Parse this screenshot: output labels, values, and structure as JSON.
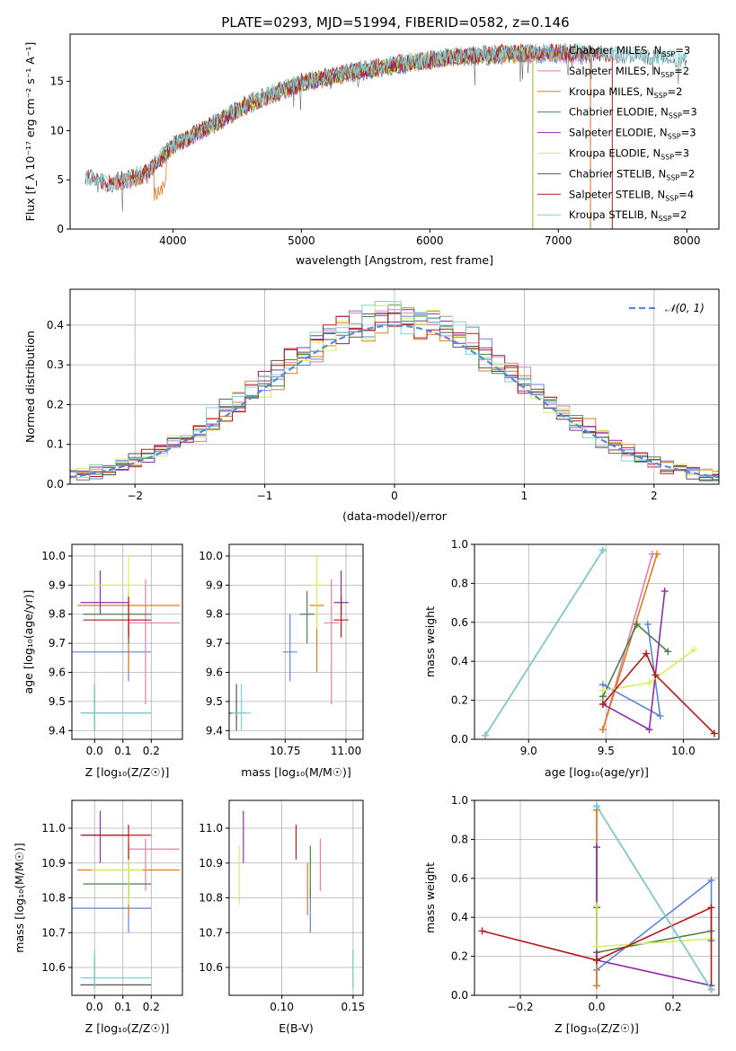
{
  "figure": {
    "title": "PLATE=0293, MJD=51994, FIBERID=0582, z=0.146"
  },
  "colors": {
    "Chabrier MILES": "#5b86d8",
    "Salpeter MILES": "#e37ea9",
    "Kroupa MILES": "#e07b1e",
    "Chabrier ELODIE": "#4f7f4c",
    "Salpeter ELODIE": "#8e2ea8",
    "Kroupa ELODIE": "#d8ee5e",
    "Chabrier STELIB": "#555555",
    "Salpeter STELIB": "#b81a1a",
    "Kroupa STELIB": "#7fd0d6",
    "gauss": "#5b86d8"
  },
  "chart_data": [
    {
      "id": "spectrum",
      "type": "line",
      "title": "PLATE=0293, MJD=51994, FIBERID=0582, z=0.146",
      "xlabel": "wavelength [Angstrom, rest frame]",
      "ylabel": "Flux [f_λ 10⁻¹⁷ erg cm⁻² s⁻¹ A⁻¹]",
      "xlim": [
        3200,
        8250
      ],
      "ylim": [
        0,
        19.8
      ],
      "xticks": [
        4000,
        5000,
        6000,
        7000,
        8000
      ],
      "yticks": [
        0,
        5,
        10,
        15
      ],
      "grid": false,
      "legend": "top-right",
      "series": [
        {
          "name": "Chabrier MILES, N_SSP=3",
          "key": "Chabrier MILES",
          "xrange": [
            3520,
            7250
          ]
        },
        {
          "name": "Salpeter MILES, N_SSP=2",
          "key": "Salpeter MILES",
          "xrange": [
            3520,
            7250
          ]
        },
        {
          "name": "Kroupa MILES, N_SSP=2",
          "key": "Kroupa MILES",
          "xrange": [
            3520,
            7250
          ]
        },
        {
          "name": "Chabrier ELODIE, N_SSP=3",
          "key": "Chabrier ELODIE",
          "xrange": [
            3900,
            6800
          ]
        },
        {
          "name": "Salpeter ELODIE, N_SSP=3",
          "key": "Salpeter ELODIE",
          "xrange": [
            3900,
            6800
          ]
        },
        {
          "name": "Kroupa ELODIE, N_SSP=3",
          "key": "Kroupa ELODIE",
          "xrange": [
            3900,
            6800
          ]
        },
        {
          "name": "Chabrier STELIB, N_SSP=2",
          "key": "Chabrier STELIB",
          "xrange": [
            3320,
            8000
          ]
        },
        {
          "name": "Salpeter STELIB, N_SSP=4",
          "key": "Salpeter STELIB",
          "xrange": [
            3320,
            7420
          ]
        },
        {
          "name": "Kroupa STELIB, N_SSP=2",
          "key": "Kroupa STELIB",
          "xrange": [
            3320,
            8000
          ]
        }
      ],
      "continuum": {
        "x": [
          3320,
          3500,
          3800,
          4000,
          4300,
          4600,
          5000,
          5400,
          5800,
          6200,
          6600,
          7000,
          7400,
          7800,
          8000
        ],
        "y": [
          5.2,
          4.5,
          5.6,
          8.5,
          10.5,
          12.8,
          14.8,
          16.0,
          16.8,
          17.5,
          17.8,
          17.9,
          17.6,
          17.3,
          17.0
        ]
      },
      "noise_amplitude": 1.1
    },
    {
      "id": "residuals",
      "type": "histogram",
      "xlabel": "(data-model)/error",
      "ylabel": "Normed distribution",
      "xlim": [
        -2.5,
        2.5
      ],
      "ylim": [
        0,
        0.49
      ],
      "xticks": [
        -2,
        -1,
        0,
        1,
        2
      ],
      "yticks": [
        0.0,
        0.1,
        0.2,
        0.3,
        0.4
      ],
      "grid": true,
      "legend": "top-right",
      "legend_label": "N(0,1)",
      "bin_width": 0.1,
      "series_keys": [
        "Chabrier MILES",
        "Salpeter MILES",
        "Kroupa MILES",
        "Chabrier ELODIE",
        "Salpeter ELODIE",
        "Kroupa ELODIE",
        "Chabrier STELIB",
        "Salpeter STELIB",
        "Kroupa STELIB"
      ]
    },
    {
      "id": "z-age",
      "type": "errorbar",
      "xlabel": "Z [log10(Z/Z⊙)]",
      "ylabel": "age [log10(age/yr)]",
      "xlim": [
        -0.08,
        0.31
      ],
      "ylim": [
        9.37,
        10.04
      ],
      "xticks": [
        0.0,
        0.1,
        0.2
      ],
      "yticks": [
        9.4,
        9.5,
        9.6,
        9.7,
        9.8,
        9.9,
        10.0
      ],
      "grid": true
    },
    {
      "id": "mass-age",
      "type": "errorbar",
      "xlabel": "mass [log10(M/M⊙)]",
      "ylabel": "",
      "xlim": [
        10.52,
        11.07
      ],
      "ylim": [
        9.37,
        10.04
      ],
      "xticks": [
        10.75,
        11.0
      ],
      "yticks": [
        9.4,
        9.5,
        9.6,
        9.7,
        9.8,
        9.9,
        10.0
      ],
      "grid": true
    },
    {
      "id": "age-weight",
      "type": "line",
      "xlabel": "age [log10(age/yr)]",
      "ylabel": "mass weight",
      "xlim": [
        8.65,
        10.23
      ],
      "ylim": [
        0,
        1.0
      ],
      "xticks": [
        9.0,
        9.5,
        10.0
      ],
      "yticks": [
        0.0,
        0.2,
        0.4,
        0.6,
        0.8,
        1.0
      ],
      "grid": true
    },
    {
      "id": "z-mass",
      "type": "errorbar",
      "xlabel": "Z [log10(Z/Z⊙)]",
      "ylabel": "mass [log10(M/M⊙)]",
      "xlim": [
        -0.08,
        0.31
      ],
      "ylim": [
        10.52,
        11.08
      ],
      "xticks": [
        0.0,
        0.1,
        0.2
      ],
      "yticks": [
        10.6,
        10.7,
        10.8,
        10.9,
        11.0
      ],
      "grid": true
    },
    {
      "id": "ebv-mass",
      "type": "errorbar",
      "xlabel": "E(B-V)",
      "ylabel": "",
      "xlim": [
        0.063,
        0.157
      ],
      "ylim": [
        10.52,
        11.08
      ],
      "xticks": [
        0.1,
        0.15
      ],
      "yticks": [
        10.6,
        10.7,
        10.8,
        10.9,
        11.0
      ],
      "grid": true
    },
    {
      "id": "z-weight",
      "type": "line",
      "xlabel": "Z [log10(Z/Z⊙)]",
      "ylabel": "mass weight",
      "xlim": [
        -0.32,
        0.32
      ],
      "ylim": [
        0,
        1.0
      ],
      "xticks": [
        -0.2,
        0.0,
        0.2
      ],
      "yticks": [
        0.0,
        0.2,
        0.4,
        0.6,
        0.8,
        1.0
      ],
      "grid": true
    }
  ],
  "fits": [
    {
      "key": "Chabrier MILES",
      "Z": 0.12,
      "Zerr": [
        -0.12,
        0.2
      ],
      "age": 9.67,
      "ageErr": [
        9.57,
        9.8
      ],
      "mass": 10.77,
      "massErr": [
        10.7,
        10.84
      ],
      "ebv": 0.12,
      "ebvErr": [
        10.7,
        10.83
      ],
      "ssp_age": [
        9.48,
        9.85,
        9.77
      ],
      "ssp_w": [
        0.28,
        0.12,
        0.59
      ],
      "ssp_Z": [
        0.0,
        0.3,
        0.3
      ],
      "ssp_zw": [
        0.13,
        0.59,
        0.28
      ]
    },
    {
      "key": "Salpeter MILES",
      "Z": 0.18,
      "Zerr": [
        0.12,
        0.3
      ],
      "age": 9.77,
      "ageErr": [
        9.49,
        9.92
      ],
      "mass": 10.94,
      "massErr": [
        10.82,
        10.97
      ],
      "ebv": 0.127,
      "ebvErr": [
        10.82,
        10.97
      ],
      "ssp_age": [
        9.48,
        9.8
      ],
      "ssp_w": [
        0.05,
        0.95
      ],
      "ssp_Z": [
        0.0,
        0.0
      ],
      "ssp_zw": [
        0.05,
        0.95
      ]
    },
    {
      "key": "Kroupa MILES",
      "Z": 0.12,
      "Zerr": [
        -0.06,
        0.3
      ],
      "age": 9.83,
      "ageErr": [
        9.6,
        9.83
      ],
      "mass": 10.88,
      "massErr": [
        10.75,
        10.9
      ],
      "ebv": 0.118,
      "ebvErr": [
        10.75,
        10.9
      ],
      "ssp_age": [
        9.48,
        9.83
      ],
      "ssp_w": [
        0.05,
        0.95
      ],
      "ssp_Z": [
        0.0,
        0.0
      ],
      "ssp_zw": [
        0.05,
        0.95
      ]
    },
    {
      "key": "Chabrier ELODIE",
      "Z": 0.12,
      "Zerr": [
        -0.04,
        0.2
      ],
      "age": 9.8,
      "ageErr": [
        9.7,
        9.88
      ],
      "mass": 10.84,
      "massErr": [
        10.8,
        10.95
      ],
      "ebv": 0.12,
      "ebvErr": [
        10.8,
        10.95
      ],
      "ssp_age": [
        9.48,
        9.7,
        9.9
      ],
      "ssp_w": [
        0.22,
        0.59,
        0.45
      ],
      "ssp_Z": [
        0.0,
        0.0,
        0.3
      ],
      "ssp_zw": [
        0.45,
        0.22,
        0.33
      ]
    },
    {
      "key": "Salpeter ELODIE",
      "Z": 0.02,
      "Zerr": [
        -0.05,
        0.12
      ],
      "age": 9.84,
      "ageErr": [
        9.8,
        9.95
      ],
      "mass": 10.98,
      "massErr": [
        10.9,
        11.05
      ],
      "ebv": 0.073,
      "ebvErr": [
        10.9,
        11.05
      ],
      "ssp_age": [
        9.48,
        9.78,
        9.88
      ],
      "ssp_w": [
        0.18,
        0.05,
        0.76
      ],
      "ssp_Z": [
        0.0,
        0.0,
        0.3
      ],
      "ssp_zw": [
        0.76,
        0.18,
        0.05
      ]
    },
    {
      "key": "Kroupa ELODIE",
      "Z": 0.12,
      "Zerr": [
        -0.01,
        0.17
      ],
      "age": 9.9,
      "ageErr": [
        9.75,
        10.0
      ],
      "mass": 10.88,
      "massErr": [
        10.78,
        10.95
      ],
      "ebv": 0.07,
      "ebvErr": [
        10.78,
        10.95
      ],
      "ssp_age": [
        9.48,
        9.78,
        10.07
      ],
      "ssp_w": [
        0.25,
        0.29,
        0.46
      ],
      "ssp_Z": [
        0.0,
        0.0,
        0.3
      ],
      "ssp_zw": [
        0.46,
        0.25,
        0.29
      ]
    },
    {
      "key": "Chabrier STELIB",
      "Z": 0.0,
      "Zerr": [
        -0.05,
        0.2
      ],
      "age": 9.46,
      "ageErr": [
        9.4,
        9.56
      ],
      "mass": 10.55,
      "massErr": [
        10.54,
        10.63
      ],
      "ebv": 0.15,
      "ebvErr": [
        10.54,
        10.65
      ],
      "ssp_age": [
        8.72,
        9.48
      ],
      "ssp_w": [
        0.02,
        0.97
      ],
      "ssp_Z": [
        0.0,
        0.3
      ],
      "ssp_zw": [
        0.97,
        0.03
      ]
    },
    {
      "key": "Salpeter STELIB",
      "Z": 0.12,
      "Zerr": [
        -0.04,
        0.2
      ],
      "age": 9.78,
      "ageErr": [
        9.72,
        9.86
      ],
      "mass": 10.98,
      "massErr": [
        10.91,
        11.01
      ],
      "ebv": 0.11,
      "ebvErr": [
        10.91,
        11.01
      ],
      "ssp_age": [
        9.48,
        9.76,
        9.82,
        10.2
      ],
      "ssp_w": [
        0.18,
        0.44,
        0.33,
        0.03
      ],
      "ssp_Z": [
        -0.3,
        0.0,
        0.3,
        0.3
      ],
      "ssp_zw": [
        0.33,
        0.18,
        0.45,
        0.03
      ]
    },
    {
      "key": "Kroupa STELIB",
      "Z": 0.0,
      "Zerr": [
        -0.05,
        0.2
      ],
      "age": 9.46,
      "ageErr": [
        9.4,
        9.56
      ],
      "mass": 10.57,
      "massErr": [
        10.54,
        10.65
      ],
      "ebv": 0.15,
      "ebvErr": [
        10.54,
        10.65
      ],
      "ssp_age": [
        8.72,
        9.48
      ],
      "ssp_w": [
        0.02,
        0.97
      ],
      "ssp_Z": [
        0.0,
        0.3
      ],
      "ssp_zw": [
        0.97,
        0.03
      ]
    }
  ]
}
